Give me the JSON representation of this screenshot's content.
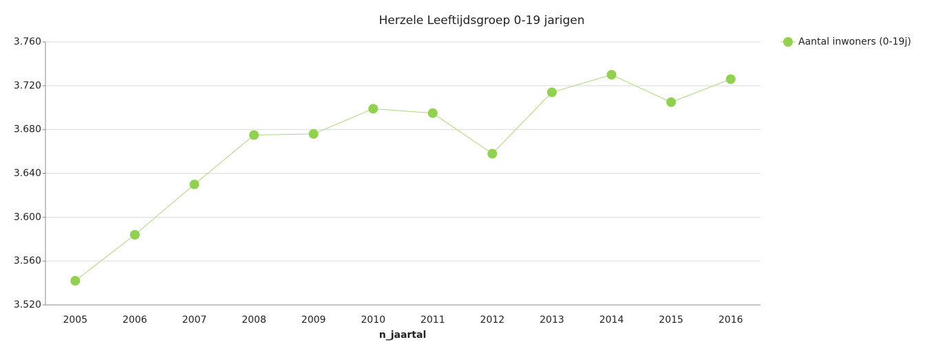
{
  "chart_data": {
    "type": "line",
    "title": "Herzele  Leeftijdsgroep 0-19 jarigen",
    "x_label": "n_jaartal",
    "categories": [
      "2005",
      "2006",
      "2007",
      "2008",
      "2009",
      "2010",
      "2011",
      "2012",
      "2013",
      "2014",
      "2015",
      "2016"
    ],
    "series": [
      {
        "name": "Aantal inwoners (0-19j)",
        "color": "#92d050",
        "line_color": "#a9d77a",
        "values": [
          3542,
          3584,
          3630,
          3675,
          3676,
          3699,
          3695,
          3658,
          3714,
          3730,
          3705,
          3726
        ]
      }
    ],
    "ylim": [
      3520,
      3760
    ],
    "yticks": [
      {
        "value": 3520,
        "label": "3.520"
      },
      {
        "value": 3560,
        "label": "3.560"
      },
      {
        "value": 3600,
        "label": "3.600"
      },
      {
        "value": 3640,
        "label": "3.640"
      },
      {
        "value": 3680,
        "label": "3.680"
      },
      {
        "value": 3720,
        "label": "3.720"
      },
      {
        "value": 3760,
        "label": "3.760"
      }
    ],
    "grid": true,
    "legend": "top-right"
  }
}
